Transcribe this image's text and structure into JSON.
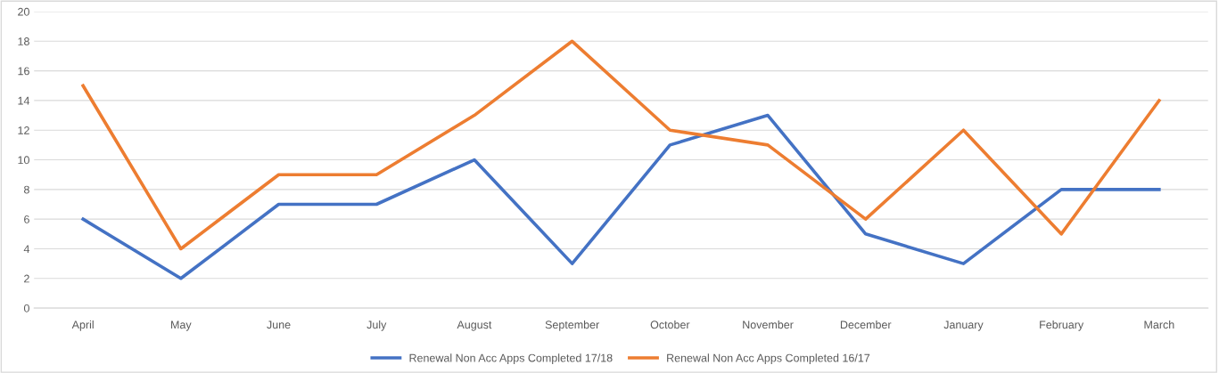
{
  "chart_data": {
    "type": "line",
    "categories": [
      "April",
      "May",
      "June",
      "July",
      "August",
      "September",
      "October",
      "November",
      "December",
      "January",
      "February",
      "March"
    ],
    "series": [
      {
        "name": "Renewal Non Acc Apps Completed 17/18",
        "color": "#4472c4",
        "values": [
          6,
          2,
          7,
          7,
          10,
          3,
          11,
          13,
          5,
          3,
          8,
          8
        ]
      },
      {
        "name": "Renewal Non Acc Apps Completed 16/17",
        "color": "#ed7d31",
        "values": [
          15,
          4,
          9,
          9,
          13,
          18,
          12,
          11,
          6,
          12,
          5,
          14
        ]
      }
    ],
    "ylim": [
      0,
      20
    ],
    "yticks": [
      0,
      2,
      4,
      6,
      8,
      10,
      12,
      14,
      16,
      18,
      20
    ],
    "grid": "y",
    "legend": "bottom",
    "marker": "none",
    "line_style": "solid"
  }
}
